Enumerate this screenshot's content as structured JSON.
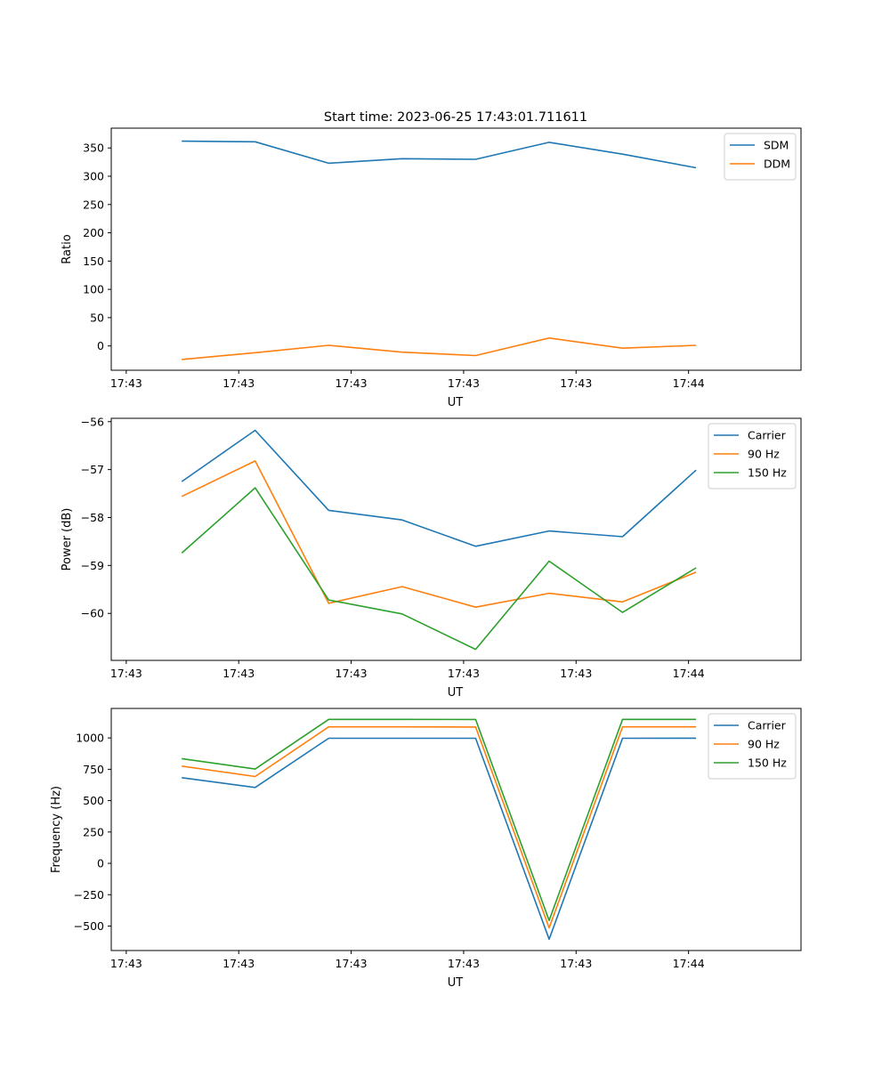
{
  "figure": {
    "title": "Start time: 2023-06-25 17:43:01.711611"
  },
  "chart_data": [
    {
      "type": "line",
      "xlabel": "UT",
      "ylabel": "Ratio",
      "xlim": [
        -0.2,
        9.0
      ],
      "ylim": [
        -43,
        385
      ],
      "x_ticks": [
        {
          "v": 0,
          "label": "17:43"
        },
        {
          "v": 1.5,
          "label": "17:43"
        },
        {
          "v": 3,
          "label": "17:43"
        },
        {
          "v": 4.5,
          "label": "17:43"
        },
        {
          "v": 6,
          "label": "17:43"
        },
        {
          "v": 7.5,
          "label": "17:44"
        }
      ],
      "y_ticks": [
        {
          "v": 0,
          "label": "0"
        },
        {
          "v": 50,
          "label": "50"
        },
        {
          "v": 100,
          "label": "100"
        },
        {
          "v": 150,
          "label": "150"
        },
        {
          "v": 200,
          "label": "200"
        },
        {
          "v": 250,
          "label": "250"
        },
        {
          "v": 300,
          "label": "300"
        },
        {
          "v": 350,
          "label": "350"
        }
      ],
      "x": [
        0.74,
        1.72,
        2.7,
        3.68,
        4.66,
        5.64,
        6.62,
        7.6
      ],
      "series": [
        {
          "name": "SDM",
          "color": "#1f77b4",
          "values": [
            362,
            361,
            323,
            331,
            330,
            360,
            339,
            315
          ]
        },
        {
          "name": "DDM",
          "color": "#ff7f0e",
          "values": [
            -24,
            -12,
            1,
            -11,
            -17,
            14,
            -4,
            1
          ]
        }
      ],
      "legend": "top-right"
    },
    {
      "type": "line",
      "xlabel": "UT",
      "ylabel": "Power (dB)",
      "xlim": [
        -0.2,
        9.0
      ],
      "ylim": [
        -60.98,
        -55.93
      ],
      "x_ticks": [
        {
          "v": 0,
          "label": "17:43"
        },
        {
          "v": 1.5,
          "label": "17:43"
        },
        {
          "v": 3,
          "label": "17:43"
        },
        {
          "v": 4.5,
          "label": "17:43"
        },
        {
          "v": 6,
          "label": "17:43"
        },
        {
          "v": 7.5,
          "label": "17:44"
        }
      ],
      "y_ticks": [
        {
          "v": -60,
          "label": "−60"
        },
        {
          "v": -59,
          "label": "−59"
        },
        {
          "v": -58,
          "label": "−58"
        },
        {
          "v": -57,
          "label": "−57"
        },
        {
          "v": -56,
          "label": "−56"
        }
      ],
      "x": [
        0.74,
        1.72,
        2.7,
        3.68,
        4.66,
        5.64,
        6.62,
        7.6
      ],
      "series": [
        {
          "name": "Carrier",
          "color": "#1f77b4",
          "values": [
            -57.25,
            -56.18,
            -57.85,
            -58.05,
            -58.6,
            -58.28,
            -58.4,
            -57.01
          ]
        },
        {
          "name": "90 Hz",
          "color": "#ff7f0e",
          "values": [
            -57.56,
            -56.82,
            -59.79,
            -59.44,
            -59.87,
            -59.58,
            -59.76,
            -59.14
          ]
        },
        {
          "name": "150 Hz",
          "color": "#2ca02c",
          "values": [
            -58.74,
            -57.38,
            -59.72,
            -60.01,
            -60.75,
            -58.91,
            -59.98,
            -59.05
          ]
        }
      ],
      "legend": "top-right"
    },
    {
      "type": "line",
      "xlabel": "UT",
      "ylabel": "Frequency (Hz)",
      "xlim": [
        -0.2,
        9.0
      ],
      "ylim": [
        -695,
        1235
      ],
      "x_ticks": [
        {
          "v": 0,
          "label": "17:43"
        },
        {
          "v": 1.5,
          "label": "17:43"
        },
        {
          "v": 3,
          "label": "17:43"
        },
        {
          "v": 4.5,
          "label": "17:43"
        },
        {
          "v": 6,
          "label": "17:43"
        },
        {
          "v": 7.5,
          "label": "17:44"
        }
      ],
      "y_ticks": [
        {
          "v": -500,
          "label": "−500"
        },
        {
          "v": -250,
          "label": "−250"
        },
        {
          "v": 0,
          "label": "0"
        },
        {
          "v": 250,
          "label": "250"
        },
        {
          "v": 500,
          "label": "500"
        },
        {
          "v": 750,
          "label": "750"
        },
        {
          "v": 1000,
          "label": "1000"
        }
      ],
      "x": [
        0.74,
        1.72,
        2.7,
        3.68,
        4.66,
        5.64,
        6.62,
        7.6
      ],
      "series": [
        {
          "name": "Carrier",
          "color": "#1f77b4",
          "values": [
            683,
            605,
            997,
            997,
            997,
            -605,
            997,
            998
          ]
        },
        {
          "name": "90 Hz",
          "color": "#ff7f0e",
          "values": [
            775,
            692,
            1088,
            1088,
            1087,
            -514,
            1088,
            1088
          ]
        },
        {
          "name": "150 Hz",
          "color": "#2ca02c",
          "values": [
            835,
            752,
            1148,
            1148,
            1147,
            -455,
            1148,
            1148
          ]
        }
      ],
      "legend": "top-right"
    }
  ]
}
